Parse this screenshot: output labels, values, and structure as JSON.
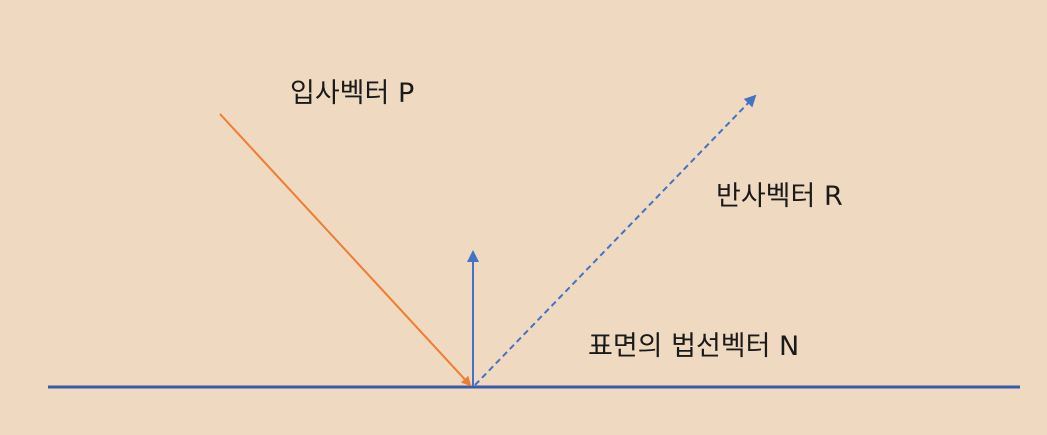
{
  "labels": {
    "incident": "입사벡터 P",
    "reflected": "반사벡터 R",
    "normal": "표면의 법선벡터 N"
  },
  "colors": {
    "background": "#efd9c0",
    "incident_vector": "#ed7d31",
    "reflected_vector": "#4472c4",
    "normal_vector": "#4472c4",
    "surface": "#3a5ba8",
    "text": "#1a1a1a"
  },
  "icons": {
    "incident": "solid-arrow",
    "reflected": "dashed-arrow",
    "normal": "solid-arrow",
    "surface": "line"
  }
}
